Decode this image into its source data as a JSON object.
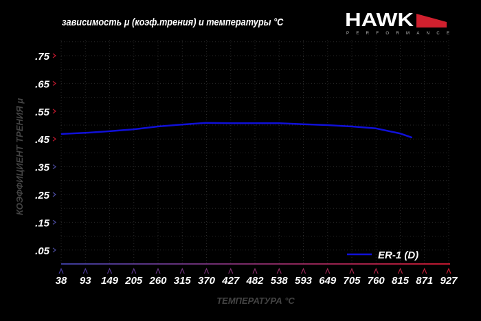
{
  "chart_data": {
    "type": "line",
    "title": "зависимость μ (коэф.трения) и температуры °C",
    "xlabel": "ТЕМПЕРАТУРА °C",
    "ylabel": "КОЭФФИЦИЕНТ ТРЕНИЯ μ",
    "x_ticks": [
      "38",
      "93",
      "149",
      "205",
      "260",
      "315",
      "370",
      "427",
      "482",
      "538",
      "593",
      "649",
      "705",
      "760",
      "815",
      "871",
      "927"
    ],
    "y_ticks": [
      ".75",
      ".65",
      ".55",
      ".45",
      ".35",
      ".25",
      ".15",
      ".05"
    ],
    "xlim": [
      38,
      927
    ],
    "ylim": [
      0.0,
      0.8
    ],
    "grid": true,
    "legend_position": "bottom-right",
    "series": [
      {
        "name": "ER-1 (D)",
        "color": "#1010d8",
        "x": [
          38,
          93,
          149,
          205,
          260,
          315,
          370,
          427,
          482,
          538,
          593,
          649,
          705,
          760,
          815,
          843
        ],
        "y": [
          0.468,
          0.472,
          0.478,
          0.485,
          0.495,
          0.502,
          0.508,
          0.507,
          0.507,
          0.507,
          0.503,
          0.5,
          0.495,
          0.488,
          0.47,
          0.455
        ]
      }
    ]
  },
  "logo": {
    "brand": "HAWK",
    "sub": "PERFORMANCE"
  },
  "colors": {
    "axis_red": "#c0182e",
    "axis_blue": "#3c3c9c",
    "grid": "#333333"
  }
}
